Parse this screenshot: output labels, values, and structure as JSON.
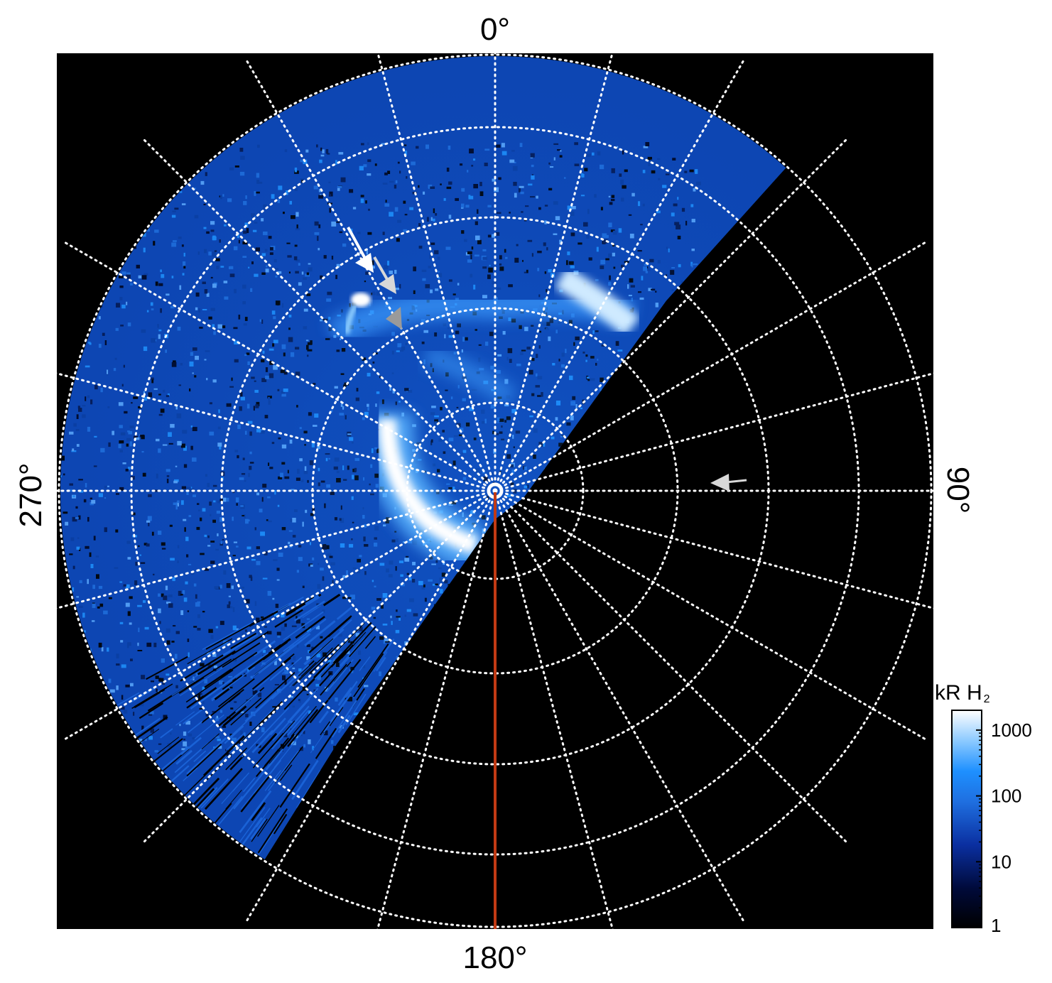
{
  "labels": {
    "top": "0°",
    "bottom": "180°",
    "left": "270°",
    "right": "90°"
  },
  "colorbar": {
    "title_main": "kR H",
    "title_sub": "2",
    "ticks": [
      {
        "value": 1000,
        "label": "1000"
      },
      {
        "value": 100,
        "label": "100"
      },
      {
        "value": 10,
        "label": "10"
      },
      {
        "value": 1,
        "label": "1"
      }
    ],
    "range": [
      1,
      2000
    ],
    "scale": "log"
  },
  "colors": {
    "background": "#000000",
    "grid": "#ffffff",
    "meridian_line": "#c23a14",
    "arrow_white": "#ffffff",
    "arrow_light_gray": "#d8d8d8",
    "arrow_gray": "#9a9a9a"
  },
  "grid": {
    "meridian_spacing_deg": 15,
    "ring_count": 5,
    "style": "dotted"
  },
  "markers": [
    {
      "name": "white-arrow",
      "color": "white"
    },
    {
      "name": "light-gray-arrow",
      "color": "light-gray"
    },
    {
      "name": "gray-arrowhead",
      "color": "gray"
    },
    {
      "name": "right-gray-arrow",
      "color": "light-gray"
    }
  ]
}
